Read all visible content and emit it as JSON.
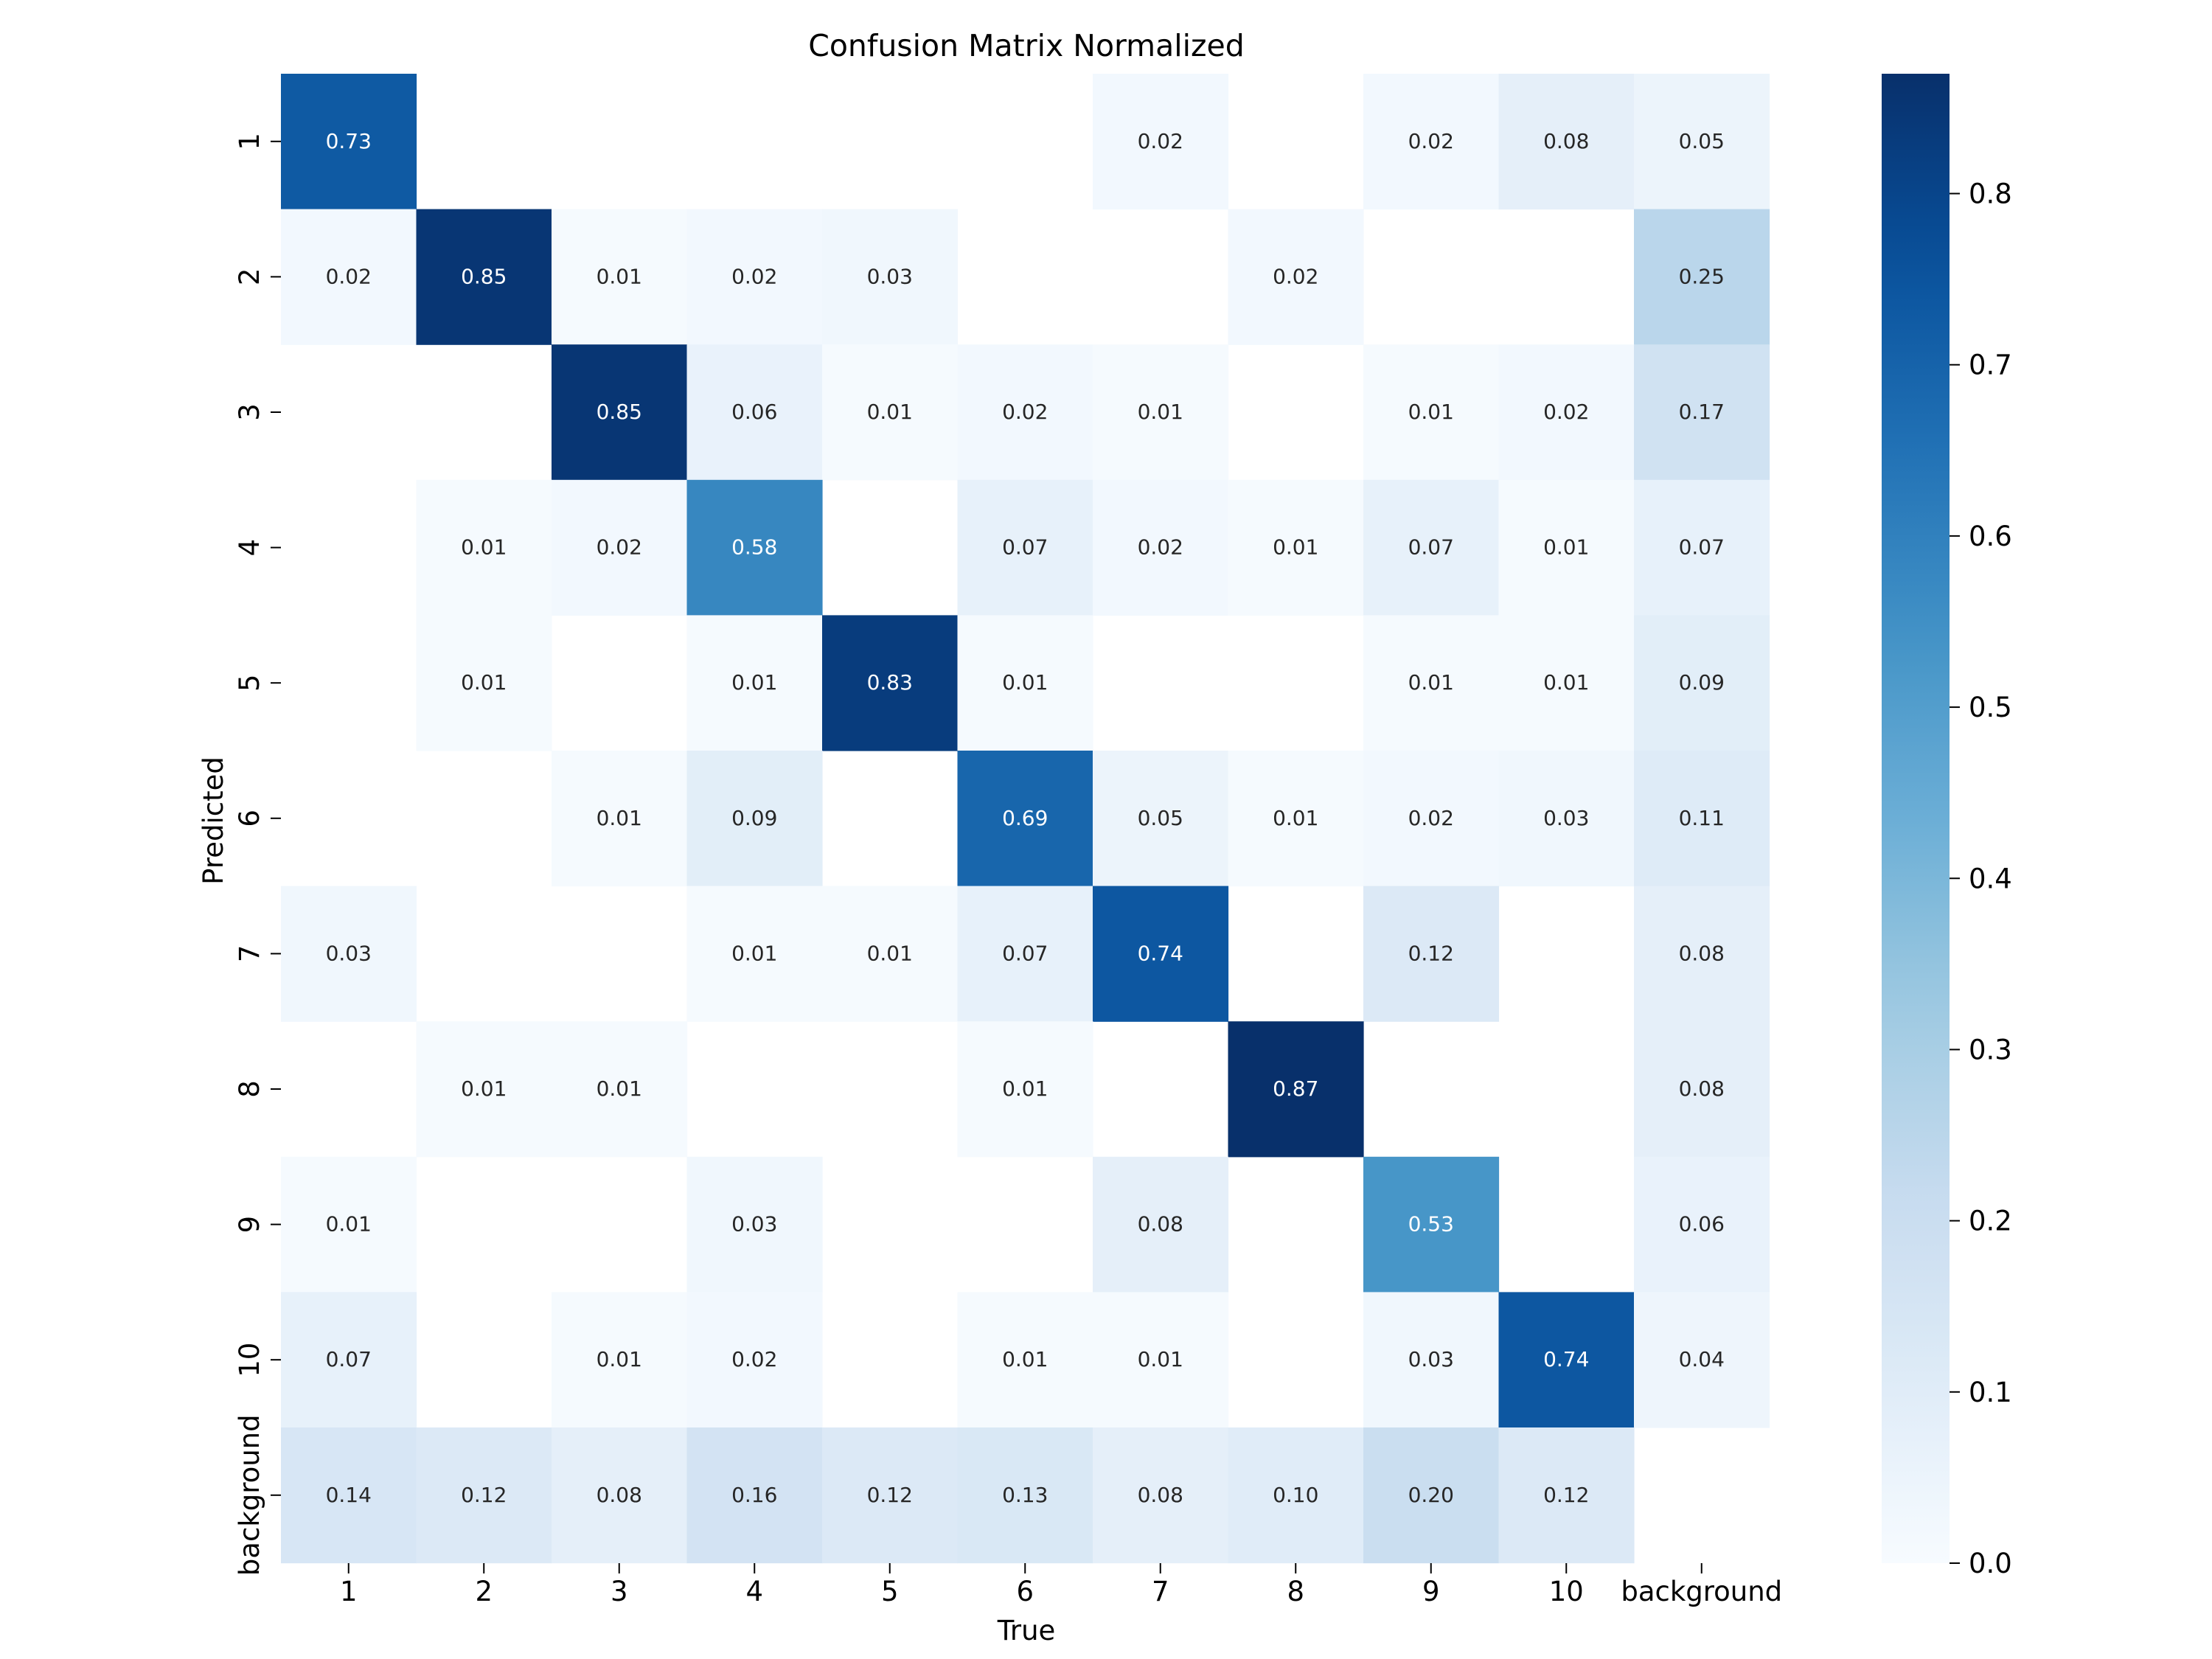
{
  "chart_data": {
    "type": "heatmap",
    "title": "Confusion Matrix Normalized",
    "xlabel": "True",
    "ylabel": "Predicted",
    "x_categories": [
      "1",
      "2",
      "3",
      "4",
      "5",
      "6",
      "7",
      "8",
      "9",
      "10",
      "background"
    ],
    "y_categories": [
      "1",
      "2",
      "3",
      "4",
      "5",
      "6",
      "7",
      "8",
      "9",
      "10",
      "background"
    ],
    "values": [
      [
        0.73,
        null,
        null,
        null,
        null,
        null,
        0.02,
        null,
        0.02,
        0.08,
        0.05
      ],
      [
        0.02,
        0.85,
        0.01,
        0.02,
        0.03,
        null,
        null,
        0.02,
        null,
        null,
        0.25
      ],
      [
        null,
        null,
        0.85,
        0.06,
        0.01,
        0.02,
        0.01,
        null,
        0.01,
        0.02,
        0.17
      ],
      [
        null,
        0.01,
        0.02,
        0.58,
        null,
        0.07,
        0.02,
        0.01,
        0.07,
        0.01,
        0.07
      ],
      [
        null,
        0.01,
        null,
        0.01,
        0.83,
        0.01,
        null,
        null,
        0.01,
        0.01,
        0.09
      ],
      [
        null,
        null,
        0.01,
        0.09,
        null,
        0.69,
        0.05,
        0.01,
        0.02,
        0.03,
        0.11
      ],
      [
        0.03,
        null,
        null,
        0.01,
        0.01,
        0.07,
        0.74,
        null,
        0.12,
        null,
        0.08
      ],
      [
        null,
        0.01,
        0.01,
        null,
        null,
        0.01,
        null,
        0.87,
        null,
        null,
        0.08
      ],
      [
        0.01,
        null,
        null,
        0.03,
        null,
        null,
        0.08,
        null,
        0.53,
        null,
        0.06
      ],
      [
        0.07,
        null,
        0.01,
        0.02,
        null,
        0.01,
        0.01,
        null,
        0.03,
        0.74,
        0.04
      ],
      [
        0.14,
        0.12,
        0.08,
        0.16,
        0.12,
        0.13,
        0.08,
        0.1,
        0.2,
        0.12,
        null
      ]
    ],
    "colormap": "Blues",
    "vmin": 0.0,
    "vmax": 0.87,
    "colorbar_ticks": [
      0.0,
      0.1,
      0.2,
      0.3,
      0.4,
      0.5,
      0.6,
      0.7,
      0.8
    ],
    "colorbar_tick_labels": [
      "0.0",
      "0.1",
      "0.2",
      "0.3",
      "0.4",
      "0.5",
      "0.6",
      "0.7",
      "0.8"
    ],
    "colorbar_placement": "right",
    "grid": false
  }
}
